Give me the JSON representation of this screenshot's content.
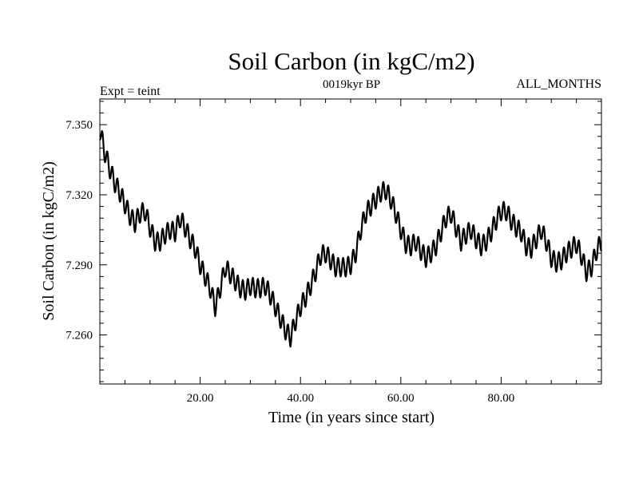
{
  "chart_data": {
    "type": "line",
    "title": "Soil Carbon (in kgC/m2)",
    "subtitle": "0019kyr BP",
    "left_note": "Expt = teint",
    "right_note": "ALL_MONTHS",
    "xlabel": "Time (in years since start)",
    "ylabel": "Soil Carbon (in kgC/m2)",
    "xlim": [
      0,
      100
    ],
    "ylim": [
      7.239,
      7.361
    ],
    "x_ticks": [
      20,
      40,
      60,
      80
    ],
    "x_tick_labels": [
      "20.00",
      "40.00",
      "60.00",
      "80.00"
    ],
    "y_ticks": [
      7.26,
      7.29,
      7.32,
      7.35
    ],
    "y_tick_labels": [
      "7.260",
      "7.290",
      "7.320",
      "7.350"
    ],
    "line_color": "#000000",
    "seasonal_amplitude": 0.004,
    "series": [
      {
        "x": [
          0,
          1,
          2,
          3,
          4,
          5,
          6,
          7,
          8,
          9,
          10,
          11,
          12,
          13,
          14,
          15,
          16,
          17,
          18,
          19,
          20,
          21,
          22,
          23,
          24,
          25,
          26,
          27,
          28,
          29,
          30,
          31,
          32,
          33,
          34,
          35,
          36,
          37,
          38,
          39,
          40,
          41,
          42,
          43,
          44,
          45,
          46,
          47,
          48,
          49,
          50,
          51,
          52,
          53,
          54,
          55,
          56,
          57,
          58,
          59,
          60,
          61,
          62,
          63,
          64,
          65,
          66,
          67,
          68,
          69,
          70,
          71,
          72,
          73,
          74,
          75,
          76,
          77,
          78,
          79,
          80,
          81,
          82,
          83,
          84,
          85,
          86,
          87,
          88,
          89,
          90,
          91,
          92,
          93,
          94,
          95,
          96,
          97,
          98,
          99,
          100
        ],
        "y": [
          7.348,
          7.338,
          7.331,
          7.325,
          7.321,
          7.316,
          7.311,
          7.308,
          7.312,
          7.313,
          7.306,
          7.3,
          7.3,
          7.303,
          7.305,
          7.304,
          7.31,
          7.306,
          7.301,
          7.297,
          7.29,
          7.285,
          7.28,
          7.272,
          7.28,
          7.289,
          7.286,
          7.283,
          7.28,
          7.279,
          7.281,
          7.28,
          7.28,
          7.281,
          7.277,
          7.272,
          7.267,
          7.262,
          7.259,
          7.266,
          7.272,
          7.276,
          7.281,
          7.287,
          7.294,
          7.295,
          7.292,
          7.289,
          7.289,
          7.289,
          7.29,
          7.295,
          7.305,
          7.312,
          7.315,
          7.318,
          7.321,
          7.322,
          7.318,
          7.312,
          7.305,
          7.299,
          7.298,
          7.3,
          7.296,
          7.293,
          7.295,
          7.298,
          7.304,
          7.31,
          7.312,
          7.306,
          7.3,
          7.303,
          7.305,
          7.301,
          7.298,
          7.3,
          7.304,
          7.309,
          7.313,
          7.313,
          7.309,
          7.306,
          7.304,
          7.298,
          7.297,
          7.301,
          7.305,
          7.3,
          7.293,
          7.291,
          7.292,
          7.295,
          7.297,
          7.299,
          7.294,
          7.287,
          7.289,
          7.296,
          7.3
        ]
      }
    ]
  }
}
